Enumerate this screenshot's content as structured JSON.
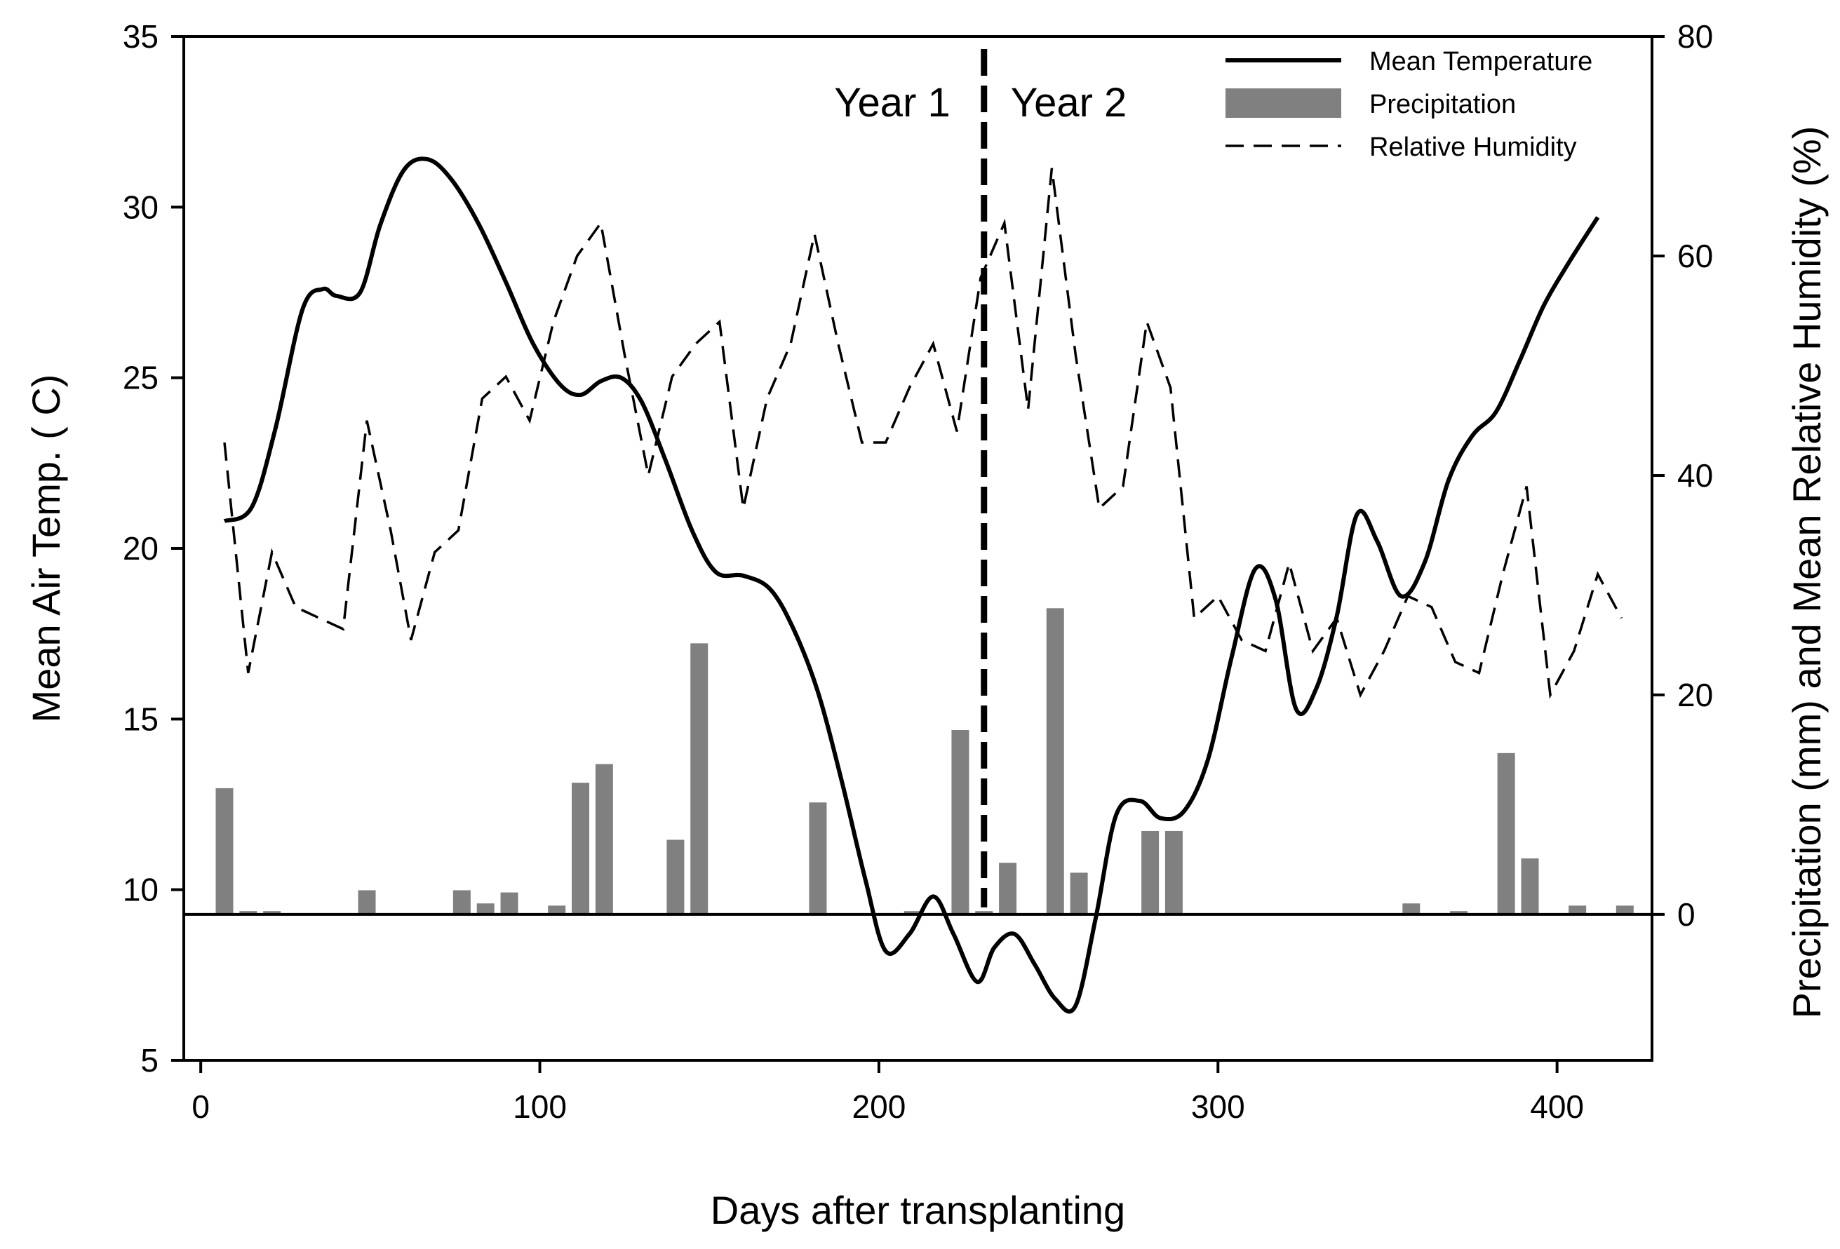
{
  "chart_data": {
    "type": "combo",
    "title": "",
    "xlabel": "Days after transplanting",
    "ylabel_left": "Mean Air Temp. ( C)",
    "ylabel_right": "Precipitation (mm) and Mean Relative Humidity (%)",
    "xlim": [
      -5,
      428
    ],
    "ylim_left": [
      5,
      35
    ],
    "ylim_right": [
      -13.3,
      80
    ],
    "xticks": [
      0,
      100,
      200,
      300,
      400
    ],
    "yticks_left": [
      5,
      10,
      15,
      20,
      25,
      30,
      35
    ],
    "yticks_right": [
      0,
      20,
      40,
      60,
      80
    ],
    "legend": {
      "position": "top-right",
      "entries": [
        "Mean Temperature",
        "Precipitation",
        "Relative Humidity"
      ]
    },
    "annotations": {
      "divider_day": 231,
      "year1": "Year 1",
      "year2": "Year 2"
    },
    "series": [
      {
        "name": "Mean Temperature",
        "axis": "left",
        "style": "solid-curve",
        "x": [
          7,
          15,
          22,
          30,
          36,
          40,
          47,
          53,
          60,
          67,
          74,
          82,
          90,
          98,
          106,
          112,
          118,
          124,
          130,
          137,
          145,
          152,
          160,
          168,
          175,
          182,
          189,
          196,
          202,
          209,
          216,
          222,
          229,
          234,
          240,
          246,
          252,
          258,
          264,
          270,
          277,
          283,
          290,
          297,
          304,
          311,
          317,
          323,
          329,
          335,
          341,
          347,
          354,
          361,
          368,
          375,
          382,
          389,
          396,
          403,
          412
        ],
        "values": [
          20.8,
          21.2,
          23.5,
          27.0,
          27.6,
          27.4,
          27.5,
          29.5,
          31.1,
          31.4,
          30.8,
          29.5,
          27.8,
          26.0,
          24.8,
          24.5,
          24.9,
          25.0,
          24.3,
          22.6,
          20.5,
          19.3,
          19.2,
          18.8,
          17.6,
          15.8,
          13.2,
          10.3,
          8.2,
          8.7,
          9.8,
          8.7,
          7.3,
          8.3,
          8.7,
          7.8,
          6.8,
          6.6,
          9.2,
          12.2,
          12.6,
          12.1,
          12.3,
          13.8,
          16.8,
          19.4,
          18.5,
          15.3,
          15.9,
          18.0,
          21.0,
          20.2,
          18.6,
          19.6,
          22.0,
          23.3,
          24.0,
          25.5,
          27.1,
          28.3,
          29.7
        ]
      },
      {
        "name": "Relative Humidity",
        "axis": "right",
        "style": "dashed",
        "x": [
          7,
          14,
          21,
          28,
          35,
          42,
          49,
          56,
          62,
          69,
          76,
          83,
          90,
          97,
          104,
          111,
          118,
          125,
          132,
          139,
          146,
          153,
          160,
          167,
          174,
          181,
          188,
          195,
          202,
          209,
          216,
          223,
          230,
          237,
          244,
          251,
          258,
          265,
          272,
          279,
          286,
          293,
          300,
          307,
          314,
          321,
          328,
          335,
          342,
          349,
          356,
          363,
          370,
          377,
          384,
          391,
          398,
          405,
          412,
          419
        ],
        "values": [
          43,
          22,
          33,
          28,
          27,
          26,
          45,
          35,
          25,
          33,
          35,
          47,
          49,
          45,
          54,
          60,
          63,
          51,
          40,
          49,
          52,
          54,
          37,
          47,
          52,
          62,
          52,
          43,
          43,
          48,
          52,
          44,
          58,
          63,
          46,
          68,
          51,
          37,
          39,
          54,
          48,
          27,
          29,
          25,
          24,
          32,
          24,
          27,
          20,
          24,
          29,
          28,
          23,
          22,
          31,
          39,
          20,
          24,
          31,
          27
        ]
      },
      {
        "name": "Precipitation",
        "axis": "right",
        "style": "bar",
        "x": [
          7,
          14,
          21,
          49,
          77,
          84,
          91,
          105,
          112,
          119,
          140,
          147,
          182,
          210,
          224,
          231,
          238,
          252,
          259,
          280,
          287,
          357,
          371,
          385,
          392,
          406,
          420
        ],
        "values": [
          11.5,
          0.3,
          0.3,
          2.2,
          2.2,
          1.0,
          2.0,
          0.8,
          12.0,
          13.7,
          6.8,
          24.7,
          10.2,
          0.3,
          16.8,
          0.3,
          4.7,
          27.9,
          3.8,
          7.6,
          7.6,
          1.0,
          0.3,
          14.7,
          5.1,
          0.8,
          0.8
        ]
      }
    ]
  }
}
